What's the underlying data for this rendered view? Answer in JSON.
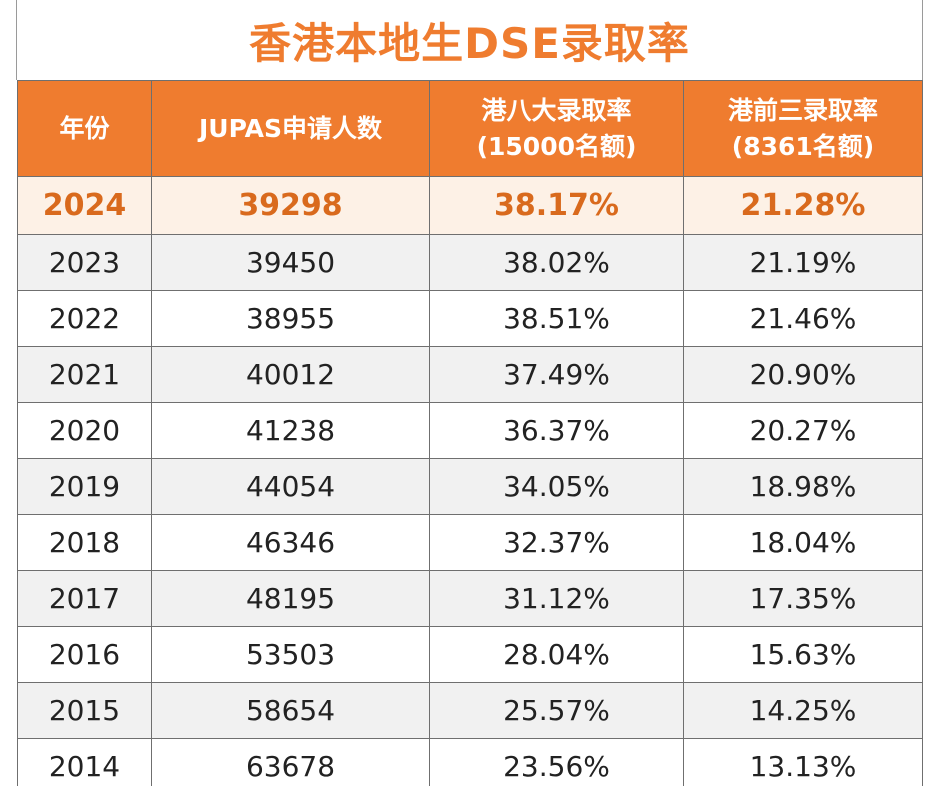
{
  "title": "香港本地生DSE录取率",
  "headers": [
    {
      "line1": "年份",
      "line2": ""
    },
    {
      "line1": "JUPAS申请人数",
      "line2": ""
    },
    {
      "line1": "港八大录取率",
      "line2": "(15000名额)"
    },
    {
      "line1": "港前三录取率",
      "line2": "(8361名额)"
    }
  ],
  "highlight_row": {
    "year": "2024",
    "applicants": "39298",
    "rate8": "38.17%",
    "rate3": "21.28%"
  },
  "rows": [
    {
      "year": "2023",
      "applicants": "39450",
      "rate8": "38.02%",
      "rate3": "21.19%"
    },
    {
      "year": "2022",
      "applicants": "38955",
      "rate8": "38.51%",
      "rate3": "21.46%"
    },
    {
      "year": "2021",
      "applicants": "40012",
      "rate8": "37.49%",
      "rate3": "20.90%"
    },
    {
      "year": "2020",
      "applicants": "41238",
      "rate8": "36.37%",
      "rate3": "20.27%"
    },
    {
      "year": "2019",
      "applicants": "44054",
      "rate8": "34.05%",
      "rate3": "18.98%"
    },
    {
      "year": "2018",
      "applicants": "46346",
      "rate8": "32.37%",
      "rate3": "18.04%"
    },
    {
      "year": "2017",
      "applicants": "48195",
      "rate8": "31.12%",
      "rate3": "17.35%"
    },
    {
      "year": "2016",
      "applicants": "53503",
      "rate8": "28.04%",
      "rate3": "15.63%"
    },
    {
      "year": "2015",
      "applicants": "58654",
      "rate8": "25.57%",
      "rate3": "14.25%"
    },
    {
      "year": "2014",
      "applicants": "63678",
      "rate8": "23.56%",
      "rate3": "13.13%"
    }
  ],
  "colors": {
    "accent": "#ef7c2f",
    "highlight_text": "#d96a1d",
    "highlight_bg": "#fdf1e6",
    "alt_row_bg": "#f1f1f1"
  }
}
